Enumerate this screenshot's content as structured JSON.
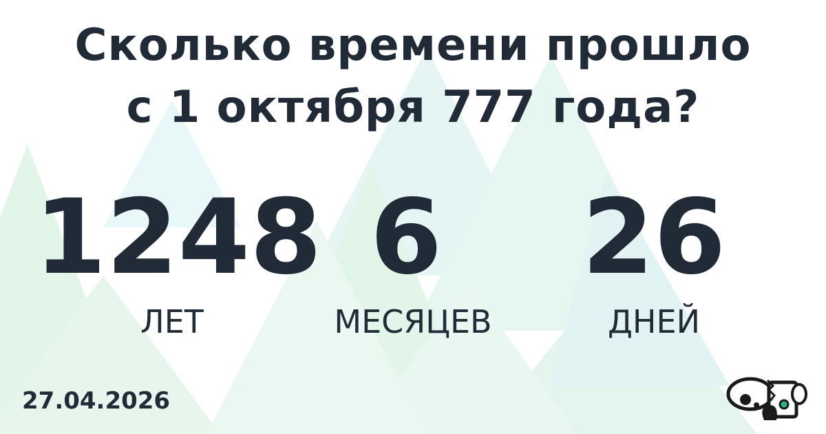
{
  "title_line1": "Сколько времени прошло",
  "title_line2": "с 1 октября 777 года?",
  "years": {
    "value": "1248",
    "label": "ЛЕТ"
  },
  "months": {
    "value": "6",
    "label": "МЕСЯЦЕВ"
  },
  "days": {
    "value": "26",
    "label": "ДНЕЙ"
  },
  "date": "27.04.2026",
  "colors": {
    "text": "#212b38",
    "triangle_green": "#bfe9cf",
    "triangle_teal": "#bfe6e6",
    "logo_accent": "#2bb58a"
  },
  "logo_icon": "koala-robot-logo"
}
